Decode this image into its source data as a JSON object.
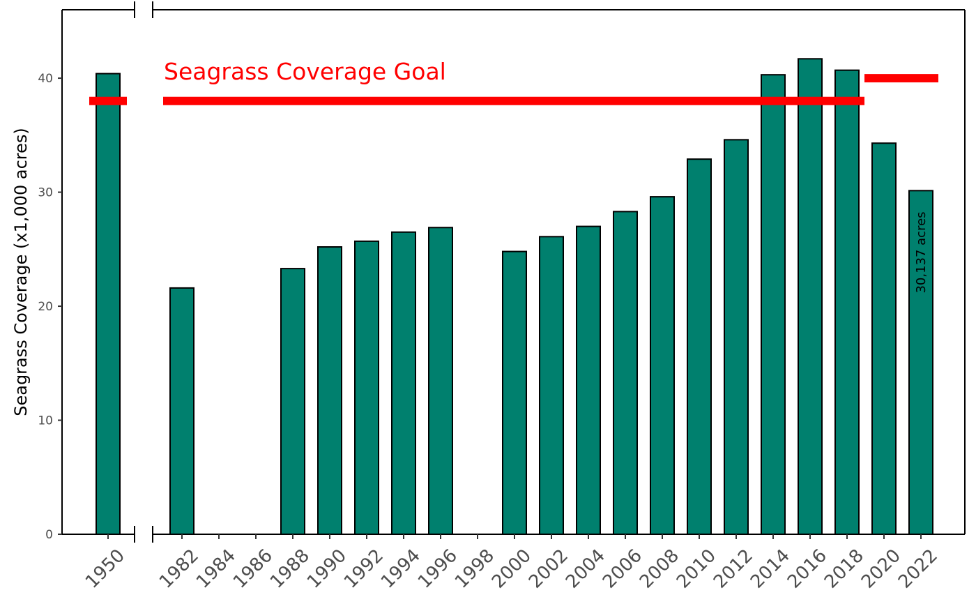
{
  "chart_data": {
    "type": "bar",
    "ylabel": "Seagrass Coverage (x1,000 acres)",
    "xlabel": "",
    "ylim": [
      0,
      46
    ],
    "yticks": [
      0,
      10,
      20,
      30,
      40
    ],
    "grid": false,
    "axis_break": "between 1950 and 1982",
    "categories": [
      "1950",
      "1982",
      "1984",
      "1986",
      "1988",
      "1990",
      "1992",
      "1994",
      "1996",
      "1998",
      "2000",
      "2002",
      "2004",
      "2006",
      "2008",
      "2010",
      "2012",
      "2014",
      "2016",
      "2018",
      "2020",
      "2022"
    ],
    "values": [
      40.4,
      21.6,
      null,
      null,
      23.3,
      25.2,
      25.7,
      26.5,
      26.9,
      null,
      24.8,
      26.1,
      27.0,
      28.3,
      29.6,
      32.9,
      34.6,
      40.3,
      41.7,
      40.7,
      34.3,
      30.137
    ],
    "bar_color": "#00806e",
    "goal": {
      "label": "Seagrass Coverage Goal",
      "color": "#ff0000",
      "segments": [
        {
          "from": "1950",
          "to": "1950",
          "value": 38
        },
        {
          "from": "1982",
          "to": "2018",
          "value": 38
        },
        {
          "from": "2020",
          "to": "2022",
          "value": 40
        }
      ]
    },
    "annotation": {
      "category": "2022",
      "text": "30,137 acres"
    }
  }
}
